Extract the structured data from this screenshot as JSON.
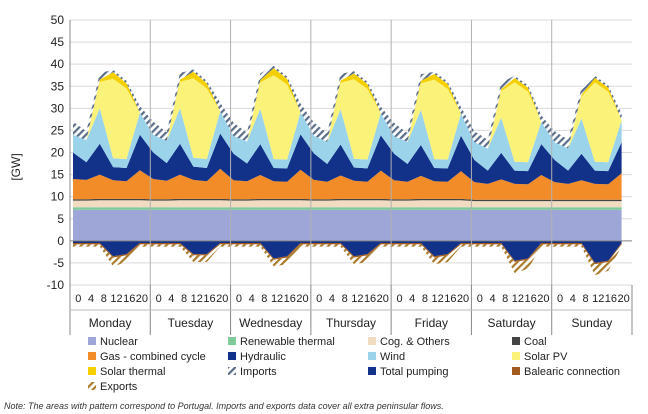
{
  "chart_data": {
    "type": "area",
    "stacked": true,
    "ylabel": "[GW]",
    "ylim": [
      -10,
      50
    ],
    "yticks": [
      -10,
      -5,
      0,
      5,
      10,
      15,
      20,
      25,
      30,
      35,
      40,
      45,
      50
    ],
    "hour_ticks": [
      "0",
      "4",
      "8",
      "12",
      "16",
      "20"
    ],
    "days": [
      "Monday",
      "Tuesday",
      "Wednesday",
      "Thursday",
      "Friday",
      "Saturday",
      "Sunday"
    ],
    "x_hours_per_day": [
      0,
      4,
      8,
      12,
      16,
      20
    ],
    "grid": true,
    "legend_position": "bottom",
    "note": "Note: The areas with pattern correspond to Portugal. Imports and exports data cover all extra peninsular flows.",
    "series": [
      {
        "name": "Nuclear",
        "color": "#9ea6d8",
        "values": [
          7,
          7,
          7,
          7,
          7,
          7,
          7,
          7,
          7,
          7,
          7,
          7,
          7,
          7,
          7,
          7,
          7,
          7,
          7,
          7,
          7,
          7,
          7,
          7,
          7,
          7,
          7,
          7,
          7,
          7,
          7,
          7,
          7,
          7,
          7,
          7,
          7,
          7,
          7,
          7,
          7,
          7
        ]
      },
      {
        "name": "Renewable thermal",
        "color": "#7fc99b",
        "values": [
          0.6,
          0.6,
          0.6,
          0.6,
          0.6,
          0.6,
          0.6,
          0.6,
          0.6,
          0.6,
          0.6,
          0.6,
          0.6,
          0.6,
          0.6,
          0.6,
          0.6,
          0.6,
          0.6,
          0.6,
          0.6,
          0.6,
          0.6,
          0.6,
          0.6,
          0.6,
          0.6,
          0.6,
          0.6,
          0.6,
          0.6,
          0.6,
          0.6,
          0.6,
          0.6,
          0.6,
          0.6,
          0.6,
          0.6,
          0.6,
          0.6,
          0.6
        ]
      },
      {
        "name": "Cog. & Others",
        "color": "#f1dcc1",
        "values": [
          1.5,
          1.5,
          1.6,
          1.6,
          1.6,
          1.6,
          1.5,
          1.5,
          1.6,
          1.6,
          1.6,
          1.6,
          1.5,
          1.5,
          1.6,
          1.6,
          1.6,
          1.6,
          1.5,
          1.5,
          1.6,
          1.6,
          1.6,
          1.6,
          1.5,
          1.5,
          1.6,
          1.6,
          1.6,
          1.6,
          1.4,
          1.4,
          1.4,
          1.4,
          1.4,
          1.4,
          1.4,
          1.4,
          1.4,
          1.4,
          1.4,
          1.4
        ]
      },
      {
        "name": "Coal",
        "color": "#444444",
        "values": [
          0.3,
          0.3,
          0.3,
          0.3,
          0.3,
          0.3,
          0.3,
          0.3,
          0.3,
          0.3,
          0.3,
          0.3,
          0.3,
          0.3,
          0.3,
          0.3,
          0.3,
          0.3,
          0.3,
          0.3,
          0.3,
          0.3,
          0.3,
          0.3,
          0.3,
          0.3,
          0.3,
          0.3,
          0.3,
          0.3,
          0.3,
          0.3,
          0.3,
          0.3,
          0.3,
          0.3,
          0.3,
          0.3,
          0.3,
          0.3,
          0.3,
          0.3
        ]
      },
      {
        "name": "Gas - combined cycle",
        "color": "#f28c28",
        "values": [
          4.6,
          4.4,
          5.5,
          4.2,
          4.0,
          6.5,
          4.6,
          4.2,
          5.5,
          4.3,
          4.0,
          6.8,
          4.3,
          4.1,
          5.4,
          4.0,
          3.9,
          6.6,
          4.4,
          4.0,
          5.3,
          4.1,
          3.9,
          6.4,
          4.3,
          4.0,
          5.2,
          4.0,
          3.9,
          6.3,
          4.0,
          3.6,
          4.6,
          3.6,
          3.5,
          5.6,
          4.0,
          3.6,
          4.4,
          3.6,
          3.5,
          6.0
        ]
      },
      {
        "name": "Hydraulic",
        "color": "#12328a",
        "values": [
          6,
          4,
          7,
          3,
          3,
          8,
          6,
          4,
          7,
          3,
          3,
          8,
          6,
          4,
          7,
          3,
          3,
          8,
          6,
          4,
          7,
          3,
          3,
          8,
          6,
          4,
          7,
          3,
          3,
          8,
          5,
          3,
          6,
          3,
          3,
          7,
          5,
          3,
          6,
          3,
          3,
          7
        ]
      },
      {
        "name": "Wind",
        "color": "#9ad3ea",
        "values": [
          4,
          5,
          8,
          2,
          2,
          5,
          4,
          5,
          8,
          2,
          2,
          5,
          4,
          5,
          8,
          2,
          2,
          5,
          4,
          5,
          8,
          2,
          2,
          5,
          4,
          5,
          8,
          2,
          2,
          5,
          4,
          5,
          8,
          2,
          2,
          5,
          4,
          5,
          8,
          2,
          2,
          5
        ]
      },
      {
        "name": "Solar PV",
        "color": "#fbf27a",
        "values": [
          0,
          0,
          6,
          18,
          16,
          0,
          0,
          0,
          6,
          18,
          16,
          0,
          0,
          0,
          6,
          19,
          17,
          0,
          0,
          0,
          6,
          18,
          16,
          0,
          0,
          0,
          6,
          18,
          16,
          0,
          0,
          0,
          6,
          18,
          16,
          0,
          0,
          0,
          5,
          18,
          16,
          0
        ]
      },
      {
        "name": "Solar thermal",
        "color": "#f5d000",
        "values": [
          0,
          0,
          0.5,
          1.5,
          1.2,
          0,
          0,
          0,
          0.5,
          1.5,
          1.2,
          0,
          0,
          0,
          0.5,
          1.6,
          1.3,
          0,
          0,
          0,
          0.5,
          1.3,
          1.1,
          0,
          0,
          0,
          0.5,
          1.3,
          1.1,
          0,
          0,
          0,
          0.4,
          1.0,
          0.9,
          0,
          0,
          0,
          0.4,
          1.0,
          0.9,
          0
        ]
      },
      {
        "name": "Imports",
        "color": "#5a6e8a",
        "pattern": true,
        "values": [
          3,
          2,
          1.5,
          0.5,
          0.5,
          1.5,
          3,
          2,
          1.5,
          0.5,
          0.5,
          2,
          3,
          2,
          1.5,
          0.5,
          0.5,
          2,
          3,
          2,
          1.5,
          0.5,
          0.5,
          1.5,
          3,
          2,
          1.5,
          0.5,
          0.5,
          1.5,
          2.5,
          2,
          1.5,
          0.5,
          0.5,
          1.5,
          2.5,
          2,
          1.5,
          0.5,
          0.5,
          1.5
        ]
      },
      {
        "name": "Total pumping",
        "color": "#12328a",
        "values": [
          -0.5,
          -0.5,
          -0.5,
          -3.5,
          -3,
          -0.5,
          -0.5,
          -0.5,
          -0.5,
          -3,
          -3,
          -0.5,
          -0.5,
          -0.5,
          -0.5,
          -4,
          -3.5,
          -0.5,
          -0.5,
          -0.5,
          -0.5,
          -3.5,
          -3,
          -0.5,
          -0.5,
          -0.5,
          -0.5,
          -3.5,
          -3,
          -0.5,
          -0.5,
          -0.5,
          -0.5,
          -4.5,
          -4,
          -0.5,
          -0.5,
          -0.5,
          -0.5,
          -5,
          -4.5,
          -0.5
        ]
      },
      {
        "name": "Balearic connection",
        "color": "#a35a1e",
        "values": [
          -0.3,
          -0.3,
          -0.3,
          -0.3,
          -0.3,
          -0.3,
          -0.3,
          -0.3,
          -0.3,
          -0.3,
          -0.3,
          -0.3,
          -0.3,
          -0.3,
          -0.3,
          -0.3,
          -0.3,
          -0.3,
          -0.3,
          -0.3,
          -0.3,
          -0.3,
          -0.3,
          -0.3,
          -0.3,
          -0.3,
          -0.3,
          -0.3,
          -0.3,
          -0.3,
          -0.3,
          -0.3,
          -0.3,
          -0.3,
          -0.3,
          -0.3,
          -0.3,
          -0.3,
          -0.3,
          -0.3,
          -0.3,
          -0.3
        ]
      },
      {
        "name": "Exports",
        "color": "#a87a2a",
        "pattern": true,
        "values": [
          -0.5,
          -0.5,
          -0.5,
          -2,
          -1.5,
          -0.5,
          -0.5,
          -0.5,
          -0.5,
          -1.5,
          -1.5,
          -0.5,
          -0.5,
          -0.5,
          -0.5,
          -1.5,
          -1.5,
          -0.5,
          -0.5,
          -0.5,
          -0.5,
          -1.5,
          -1.5,
          -0.5,
          -0.5,
          -0.5,
          -0.5,
          -1.5,
          -1.5,
          -0.5,
          -0.5,
          -0.5,
          -0.5,
          -2.5,
          -2,
          -0.5,
          -0.5,
          -0.5,
          -0.5,
          -2.5,
          -2,
          -0.5
        ]
      }
    ]
  }
}
